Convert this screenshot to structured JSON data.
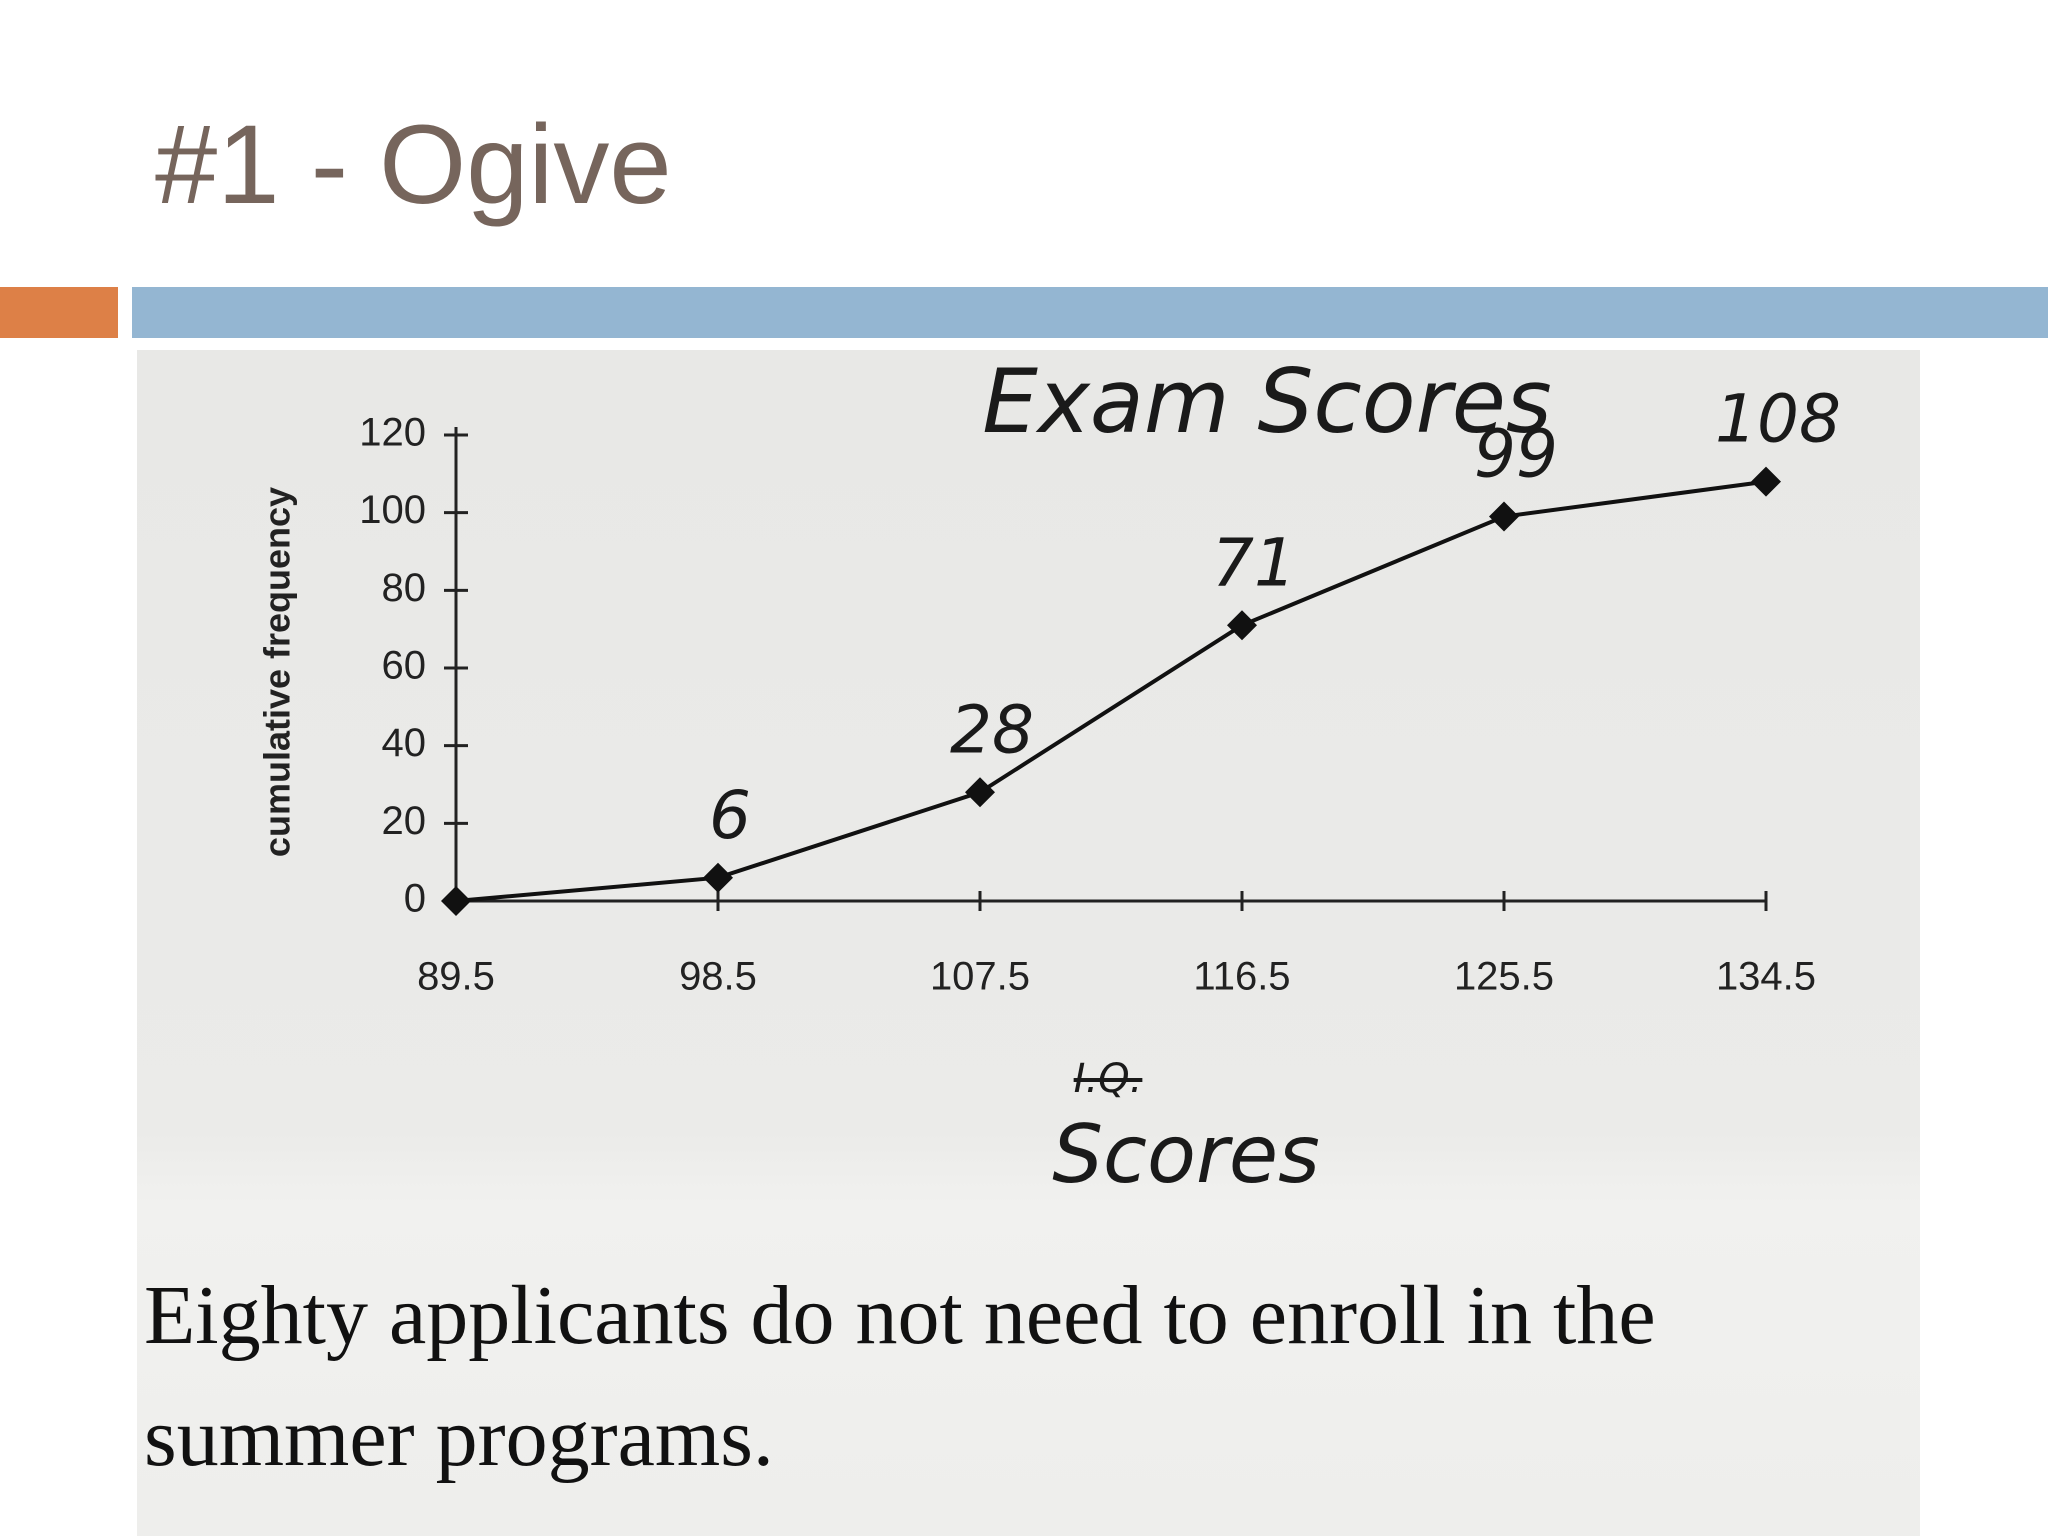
{
  "slide_title": "#1 - Ogive",
  "chart_data": {
    "type": "line",
    "title": "Exam Scores",
    "ylabel": "cumulative frequency",
    "xlabel_crossed": "I.Q.",
    "xlabel": "Scores",
    "x": [
      89.5,
      98.5,
      107.5,
      116.5,
      125.5,
      134.5
    ],
    "values": [
      0,
      6,
      28,
      71,
      99,
      108
    ],
    "value_labels": [
      null,
      "6",
      "28",
      "71",
      "99",
      "108"
    ],
    "color": "#111111",
    "xlim": [
      89.5,
      134.5
    ],
    "xticks": [
      89.5,
      98.5,
      107.5,
      116.5,
      125.5,
      134.5
    ],
    "ylim": [
      0,
      120
    ],
    "yticks": [
      0,
      20,
      40,
      60,
      80,
      100,
      120
    ],
    "grid": false
  },
  "caption_lines": [
    "Eighty applicants do not need to enroll in the",
    "summer programs."
  ]
}
